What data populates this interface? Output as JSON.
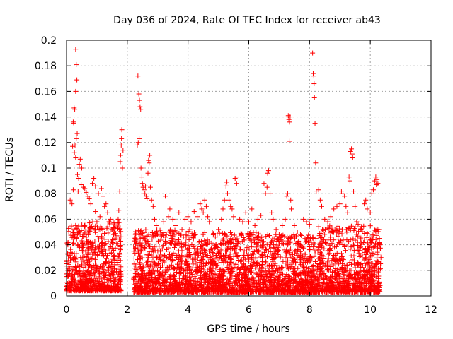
{
  "chart_data": {
    "type": "scatter",
    "title": "Day 036 of 2024, Rate Of TEC Index for receiver ab43",
    "xlabel": "GPS time / hours",
    "ylabel": "ROTI / TECUs",
    "xlim": [
      0,
      12
    ],
    "ylim": [
      0,
      0.2
    ],
    "xticks": [
      0,
      2,
      4,
      6,
      8,
      10,
      12
    ],
    "yticks": [
      0,
      0.02,
      0.04,
      0.06,
      0.08,
      0.1,
      0.12,
      0.14,
      0.16,
      0.18,
      0.2
    ],
    "xtick_labels": [
      "0",
      "2",
      "4",
      "6",
      "8",
      "10",
      "12"
    ],
    "ytick_labels": [
      "0",
      "0.02",
      "0.04",
      "0.06",
      "0.08",
      "0.1",
      "0.12",
      "0.14",
      "0.16",
      "0.18",
      "0.2"
    ],
    "grid": true,
    "marker": "+",
    "color": "#ff0000",
    "points": [
      [
        0.3,
        0.193
      ],
      [
        0.32,
        0.181
      ],
      [
        0.34,
        0.169
      ],
      [
        0.3,
        0.16
      ],
      [
        0.25,
        0.147
      ],
      [
        0.27,
        0.146
      ],
      [
        0.22,
        0.136
      ],
      [
        0.24,
        0.135
      ],
      [
        0.35,
        0.127
      ],
      [
        0.32,
        0.123
      ],
      [
        0.28,
        0.118
      ],
      [
        0.2,
        0.117
      ],
      [
        0.26,
        0.112
      ],
      [
        0.3,
        0.108
      ],
      [
        0.45,
        0.107
      ],
      [
        0.5,
        0.1
      ],
      [
        0.42,
        0.103
      ],
      [
        0.36,
        0.095
      ],
      [
        0.4,
        0.092
      ],
      [
        0.48,
        0.087
      ],
      [
        0.55,
        0.085
      ],
      [
        0.6,
        0.084
      ],
      [
        0.38,
        0.082
      ],
      [
        0.22,
        0.083
      ],
      [
        0.12,
        0.075
      ],
      [
        0.18,
        0.072
      ],
      [
        0.65,
        0.081
      ],
      [
        0.7,
        0.078
      ],
      [
        0.75,
        0.076
      ],
      [
        0.8,
        0.072
      ],
      [
        0.85,
        0.088
      ],
      [
        0.9,
        0.092
      ],
      [
        0.95,
        0.086
      ],
      [
        1.05,
        0.08
      ],
      [
        1.15,
        0.084
      ],
      [
        1.2,
        0.078
      ],
      [
        1.25,
        0.07
      ],
      [
        1.3,
        0.072
      ],
      [
        1.35,
        0.065
      ],
      [
        1.1,
        0.062
      ],
      [
        1.0,
        0.058
      ],
      [
        0.95,
        0.066
      ],
      [
        1.4,
        0.058
      ],
      [
        1.45,
        0.06
      ],
      [
        1.5,
        0.052
      ],
      [
        1.55,
        0.048
      ],
      [
        1.6,
        0.044
      ],
      [
        1.65,
        0.041
      ],
      [
        1.7,
        0.06
      ],
      [
        1.75,
        0.082
      ],
      [
        1.77,
        0.105
      ],
      [
        1.78,
        0.11
      ],
      [
        1.8,
        0.118
      ],
      [
        1.81,
        0.123
      ],
      [
        1.82,
        0.13
      ],
      [
        1.84,
        0.1
      ],
      [
        1.86,
        0.114
      ],
      [
        1.72,
        0.067
      ],
      [
        1.74,
        0.052
      ],
      [
        2.35,
        0.172
      ],
      [
        2.38,
        0.158
      ],
      [
        2.4,
        0.153
      ],
      [
        2.42,
        0.148
      ],
      [
        2.44,
        0.146
      ],
      [
        2.36,
        0.12
      ],
      [
        2.39,
        0.123
      ],
      [
        2.33,
        0.118
      ],
      [
        2.45,
        0.1
      ],
      [
        2.48,
        0.093
      ],
      [
        2.5,
        0.088
      ],
      [
        2.52,
        0.085
      ],
      [
        2.55,
        0.083
      ],
      [
        2.58,
        0.08
      ],
      [
        2.6,
        0.086
      ],
      [
        2.62,
        0.078
      ],
      [
        2.65,
        0.076
      ],
      [
        2.7,
        0.106
      ],
      [
        2.72,
        0.104
      ],
      [
        2.74,
        0.11
      ],
      [
        2.68,
        0.096
      ],
      [
        2.76,
        0.085
      ],
      [
        2.8,
        0.075
      ],
      [
        2.85,
        0.07
      ],
      [
        2.9,
        0.06
      ],
      [
        2.95,
        0.055
      ],
      [
        3.0,
        0.048
      ],
      [
        3.1,
        0.05
      ],
      [
        3.2,
        0.058
      ],
      [
        3.25,
        0.078
      ],
      [
        3.35,
        0.062
      ],
      [
        3.4,
        0.068
      ],
      [
        3.5,
        0.06
      ],
      [
        3.6,
        0.055
      ],
      [
        3.7,
        0.065
      ],
      [
        3.8,
        0.052
      ],
      [
        3.9,
        0.06
      ],
      [
        4.0,
        0.062
      ],
      [
        4.1,
        0.058
      ],
      [
        4.2,
        0.066
      ],
      [
        4.3,
        0.062
      ],
      [
        4.4,
        0.072
      ],
      [
        4.45,
        0.068
      ],
      [
        4.5,
        0.065
      ],
      [
        4.55,
        0.075
      ],
      [
        4.6,
        0.07
      ],
      [
        4.65,
        0.062
      ],
      [
        4.7,
        0.058
      ],
      [
        4.8,
        0.05
      ],
      [
        4.9,
        0.046
      ],
      [
        5.0,
        0.052
      ],
      [
        5.1,
        0.06
      ],
      [
        5.15,
        0.068
      ],
      [
        5.2,
        0.075
      ],
      [
        5.25,
        0.086
      ],
      [
        5.28,
        0.089
      ],
      [
        5.3,
        0.08
      ],
      [
        5.35,
        0.075
      ],
      [
        5.4,
        0.07
      ],
      [
        5.45,
        0.068
      ],
      [
        5.5,
        0.062
      ],
      [
        5.55,
        0.092
      ],
      [
        5.58,
        0.093
      ],
      [
        5.6,
        0.088
      ],
      [
        5.7,
        0.06
      ],
      [
        5.8,
        0.058
      ],
      [
        5.9,
        0.065
      ],
      [
        6.0,
        0.058
      ],
      [
        6.1,
        0.068
      ],
      [
        6.2,
        0.055
      ],
      [
        6.3,
        0.06
      ],
      [
        6.4,
        0.063
      ],
      [
        6.5,
        0.088
      ],
      [
        6.55,
        0.08
      ],
      [
        6.6,
        0.085
      ],
      [
        6.62,
        0.096
      ],
      [
        6.65,
        0.098
      ],
      [
        6.7,
        0.08
      ],
      [
        6.75,
        0.065
      ],
      [
        6.8,
        0.06
      ],
      [
        6.9,
        0.052
      ],
      [
        7.0,
        0.048
      ],
      [
        7.1,
        0.055
      ],
      [
        7.2,
        0.06
      ],
      [
        7.25,
        0.078
      ],
      [
        7.28,
        0.08
      ],
      [
        7.3,
        0.141
      ],
      [
        7.32,
        0.138
      ],
      [
        7.34,
        0.136
      ],
      [
        7.36,
        0.14
      ],
      [
        7.33,
        0.121
      ],
      [
        7.38,
        0.075
      ],
      [
        7.4,
        0.068
      ],
      [
        7.5,
        0.055
      ],
      [
        7.6,
        0.05
      ],
      [
        7.7,
        0.048
      ],
      [
        7.8,
        0.06
      ],
      [
        7.9,
        0.058
      ],
      [
        8.0,
        0.056
      ],
      [
        8.05,
        0.06
      ],
      [
        8.1,
        0.19
      ],
      [
        8.12,
        0.174
      ],
      [
        8.14,
        0.172
      ],
      [
        8.15,
        0.166
      ],
      [
        8.16,
        0.155
      ],
      [
        8.18,
        0.135
      ],
      [
        8.2,
        0.104
      ],
      [
        8.22,
        0.082
      ],
      [
        8.3,
        0.083
      ],
      [
        8.35,
        0.075
      ],
      [
        8.4,
        0.07
      ],
      [
        8.5,
        0.06
      ],
      [
        8.6,
        0.058
      ],
      [
        8.7,
        0.062
      ],
      [
        8.8,
        0.068
      ],
      [
        8.9,
        0.07
      ],
      [
        9.0,
        0.072
      ],
      [
        9.05,
        0.082
      ],
      [
        9.1,
        0.08
      ],
      [
        9.15,
        0.078
      ],
      [
        9.2,
        0.07
      ],
      [
        9.25,
        0.065
      ],
      [
        9.3,
        0.093
      ],
      [
        9.33,
        0.09
      ],
      [
        9.35,
        0.113
      ],
      [
        9.38,
        0.115
      ],
      [
        9.4,
        0.111
      ],
      [
        9.42,
        0.108
      ],
      [
        9.45,
        0.082
      ],
      [
        9.5,
        0.07
      ],
      [
        9.55,
        0.058
      ],
      [
        9.6,
        0.056
      ],
      [
        9.7,
        0.052
      ],
      [
        9.8,
        0.072
      ],
      [
        9.85,
        0.075
      ],
      [
        9.9,
        0.068
      ],
      [
        10.0,
        0.065
      ],
      [
        10.05,
        0.08
      ],
      [
        10.1,
        0.083
      ],
      [
        10.15,
        0.09
      ],
      [
        10.18,
        0.093
      ],
      [
        10.2,
        0.087
      ],
      [
        10.22,
        0.091
      ],
      [
        10.25,
        0.088
      ],
      [
        10.28,
        0.052
      ],
      [
        10.3,
        0.045
      ],
      [
        10.32,
        0.04
      ],
      [
        10.35,
        0.03
      ]
    ],
    "dense_bands": [
      {
        "x": [
          0.0,
          1.8
        ],
        "y": [
          0.004,
          0.058
        ]
      },
      {
        "x": [
          2.2,
          4.1
        ],
        "y": [
          0.003,
          0.052
        ]
      },
      {
        "x": [
          4.1,
          6.4
        ],
        "y": [
          0.003,
          0.05
        ]
      },
      {
        "x": [
          6.4,
          8.3
        ],
        "y": [
          0.003,
          0.048
        ]
      },
      {
        "x": [
          8.3,
          10.35
        ],
        "y": [
          0.003,
          0.055
        ]
      }
    ]
  }
}
